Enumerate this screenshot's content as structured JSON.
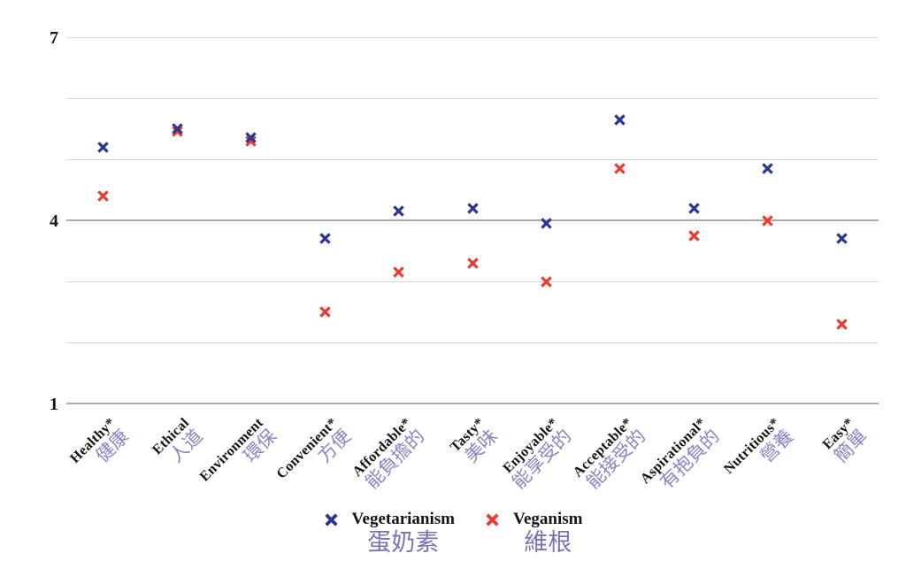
{
  "chart_data": {
    "type": "scatter",
    "title": "",
    "xlabel": "",
    "ylabel": "",
    "categories": [
      {
        "en": "Healthy*",
        "zh": "健康"
      },
      {
        "en": "Ethical",
        "zh": "人道"
      },
      {
        "en": "Environment",
        "zh": "環保"
      },
      {
        "en": "Convenient*",
        "zh": "方便"
      },
      {
        "en": "Affordable*",
        "zh": "能負擔的"
      },
      {
        "en": "Tasty*",
        "zh": "美味"
      },
      {
        "en": "Enjoyable*",
        "zh": "能享受的"
      },
      {
        "en": "Acceptable*",
        "zh": "能接受的"
      },
      {
        "en": "Aspirational*",
        "zh": "有抱負的"
      },
      {
        "en": "Nutritious*",
        "zh": "營養"
      },
      {
        "en": "Easy*",
        "zh": "簡單"
      }
    ],
    "series": [
      {
        "name": "Vegetarianism",
        "name_zh": "蛋奶素",
        "color": "#2a3693",
        "marker": "x",
        "values": [
          5.2,
          5.5,
          5.35,
          3.7,
          4.15,
          4.2,
          3.95,
          5.65,
          4.2,
          4.85,
          3.7
        ]
      },
      {
        "name": "Veganism",
        "name_zh": "維根",
        "color": "#ee3a2f",
        "marker": "x",
        "values": [
          4.4,
          5.45,
          5.3,
          2.5,
          3.15,
          3.3,
          3.0,
          4.85,
          3.75,
          4.0,
          2.3
        ]
      }
    ],
    "ylim": [
      1,
      7
    ],
    "yticks": [
      {
        "value": 7,
        "label": "7"
      },
      {
        "value": 4,
        "label": "4"
      },
      {
        "value": 1,
        "label": "1"
      }
    ],
    "gridlines": {
      "values": [
        1,
        2,
        3,
        4,
        5,
        6,
        7
      ],
      "emphasized": [
        1,
        4
      ]
    },
    "legend_position": "bottom",
    "colors": {
      "axis_label_en": "#141414",
      "axis_label_zh": "#8a84c4",
      "legend_zh": "#7d70b5",
      "gridline": "#d8d8d8",
      "gridline_emphasized": "#ababab",
      "background": "#ffffff"
    }
  }
}
